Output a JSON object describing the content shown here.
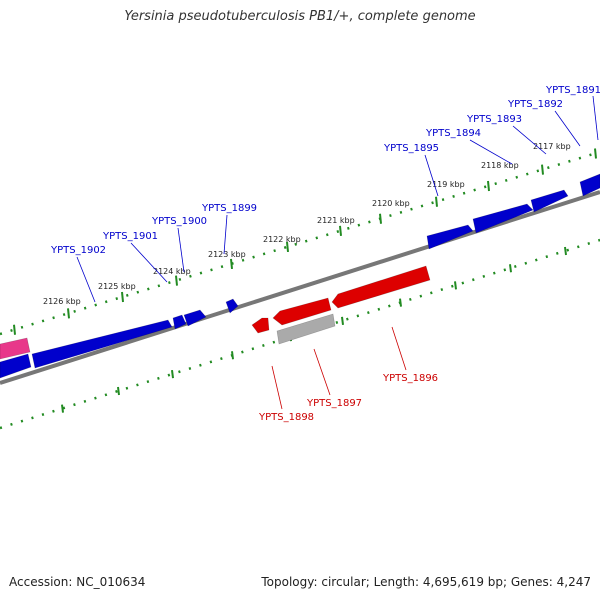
{
  "title": "Yersinia pseudotuberculosis PB1/+, complete genome",
  "accession_text": "Accession: NC_010634",
  "info_text": "Topology: circular; Length: 4,695,619 bp; Genes: 4,247",
  "colors": {
    "forward_gene": "#0000cc",
    "reverse_gene": "#dd0000",
    "pseudo_gene": "#aaaaaa",
    "pink_feature": "#e8388a",
    "backbone": "#777777",
    "ticks": "#228b22",
    "forward_label": "#0000cc",
    "reverse_label": "#cc0000"
  },
  "kbp_ticks": [
    "2117 kbp",
    "2118 kbp",
    "2119 kbp",
    "2120 kbp",
    "2121 kbp",
    "2122 kbp",
    "2123 kbp",
    "2124 kbp",
    "2125 kbp",
    "2126 kbp"
  ],
  "forward_labels": [
    "YPTS_1891",
    "YPTS_1892",
    "YPTS_1893",
    "YPTS_1894",
    "YPTS_1895",
    "YPTS_1899",
    "YPTS_1900",
    "YPTS_1901",
    "YPTS_1902"
  ],
  "reverse_labels": [
    "YPTS_1896",
    "YPTS_1897",
    "YPTS_1898"
  ]
}
